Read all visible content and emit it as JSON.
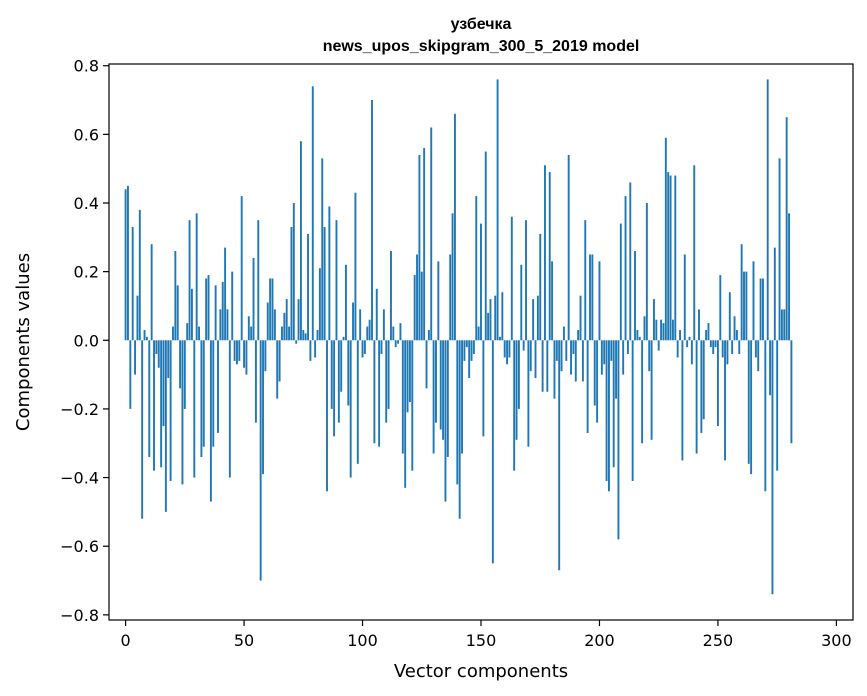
{
  "chart_data": {
    "type": "bar",
    "title": "узбечка",
    "subtitle": "news_upos_skipgram_300_5_2019 model",
    "xlabel": "Vector components",
    "ylabel": "Components values",
    "xlim": [
      -7,
      307
    ],
    "ylim": [
      -0.815,
      0.805
    ],
    "xticks": [
      0,
      50,
      100,
      150,
      200,
      250,
      300
    ],
    "yticks": [
      -0.8,
      -0.6,
      -0.4,
      -0.2,
      0.0,
      0.2,
      0.4,
      0.6,
      0.8
    ],
    "xtick_labels": [
      "0",
      "50",
      "100",
      "150",
      "200",
      "250",
      "300"
    ],
    "ytick_labels": [
      "−0.8",
      "−0.6",
      "−0.4",
      "−0.2",
      "0.0",
      "0.2",
      "0.4",
      "0.6",
      "0.8"
    ],
    "bar_color": "#1f77b4",
    "series": [
      {
        "name": "узбечка",
        "values": [
          0.44,
          0.45,
          -0.2,
          0.33,
          -0.1,
          0.13,
          0.38,
          -0.52,
          0.03,
          0.01,
          -0.34,
          0.28,
          -0.38,
          -0.04,
          -0.08,
          -0.37,
          -0.25,
          -0.5,
          -0.11,
          -0.41,
          0.04,
          0.26,
          0.16,
          -0.14,
          -0.42,
          -0.2,
          0.05,
          0.35,
          0.15,
          -0.4,
          0.37,
          0.04,
          -0.34,
          -0.31,
          0.18,
          0.19,
          -0.47,
          -0.31,
          0.16,
          -0.27,
          0.09,
          0.17,
          0.27,
          0.09,
          -0.4,
          0.2,
          -0.06,
          -0.07,
          -0.06,
          0.42,
          -0.08,
          -0.1,
          0.07,
          0.04,
          0.24,
          -0.24,
          0.35,
          -0.7,
          -0.39,
          -0.09,
          0.11,
          0.18,
          0.18,
          0.09,
          -0.17,
          -0.12,
          0.04,
          0.08,
          0.12,
          0.04,
          0.33,
          0.4,
          -0.01,
          0.12,
          0.58,
          0.03,
          0.02,
          0.31,
          -0.06,
          0.74,
          -0.05,
          0.03,
          0.21,
          0.53,
          0.33,
          -0.44,
          0.39,
          -0.2,
          -0.28,
          0.35,
          -0.24,
          -0.15,
          0.01,
          0.22,
          -0.19,
          -0.4,
          0.11,
          0.43,
          -0.36,
          0.09,
          -0.05,
          -0.04,
          0.04,
          0.06,
          0.7,
          -0.3,
          0.15,
          -0.31,
          -0.04,
          0.09,
          -0.24,
          -0.2,
          0.26,
          0.04,
          -0.02,
          -0.01,
          0.05,
          -0.33,
          -0.43,
          -0.21,
          -0.18,
          -0.38,
          0.19,
          0.25,
          0.54,
          0.2,
          0.56,
          -0.14,
          0.03,
          0.62,
          -0.33,
          -0.24,
          0.23,
          -0.26,
          -0.29,
          -0.47,
          -0.34,
          0.25,
          0.37,
          0.66,
          -0.42,
          -0.52,
          -0.33,
          -0.06,
          -0.02,
          -0.11,
          -0.06,
          -0.04,
          0.42,
          0.04,
          0.34,
          -0.28,
          0.55,
          0.08,
          0.12,
          -0.65,
          0.13,
          0.76,
          0.01,
          0.14,
          -0.05,
          -0.07,
          -0.05,
          0.36,
          -0.38,
          -0.29,
          -0.2,
          0.22,
          -0.03,
          0.35,
          -0.31,
          -0.09,
          0.12,
          -0.11,
          0.13,
          0.31,
          -0.15,
          0.51,
          -0.15,
          0.49,
          0.23,
          -0.17,
          -0.06,
          -0.67,
          -0.09,
          0.04,
          -0.06,
          0.54,
          -0.1,
          -0.04,
          -0.12,
          0.03,
          0.13,
          -0.12,
          0.35,
          -0.27,
          0.25,
          0.25,
          -0.19,
          -0.24,
          0.23,
          -0.1,
          -0.07,
          -0.41,
          -0.44,
          -0.06,
          -0.37,
          -0.17,
          -0.58,
          0.34,
          -0.1,
          0.42,
          -0.04,
          0.46,
          -0.41,
          0.26,
          0.03,
          0.01,
          -0.3,
          0.07,
          0.4,
          -0.09,
          -0.29,
          0.12,
          0.06,
          -0.03,
          0.06,
          0.05,
          0.59,
          0.49,
          0.48,
          0.06,
          0.48,
          -0.05,
          0.03,
          -0.35,
          0.25,
          -0.02,
          0.01,
          -0.07,
          0.51,
          -0.33,
          0.09,
          -0.27,
          -0.23,
          0.03,
          0.05,
          -0.02,
          -0.04,
          -0.02,
          -0.25,
          0.19,
          -0.05,
          -0.35,
          -0.07,
          0.14,
          -0.04,
          0.07,
          0.03,
          -0.04,
          0.28,
          0.2,
          0.2,
          -0.36,
          -0.39,
          0.23,
          -0.05,
          -0.09,
          0.18,
          0.18,
          -0.44,
          0.76,
          -0.16,
          -0.74,
          0.27,
          -0.38,
          0.53,
          0.09,
          0.09,
          0.65,
          0.37,
          -0.3
        ]
      }
    ]
  }
}
